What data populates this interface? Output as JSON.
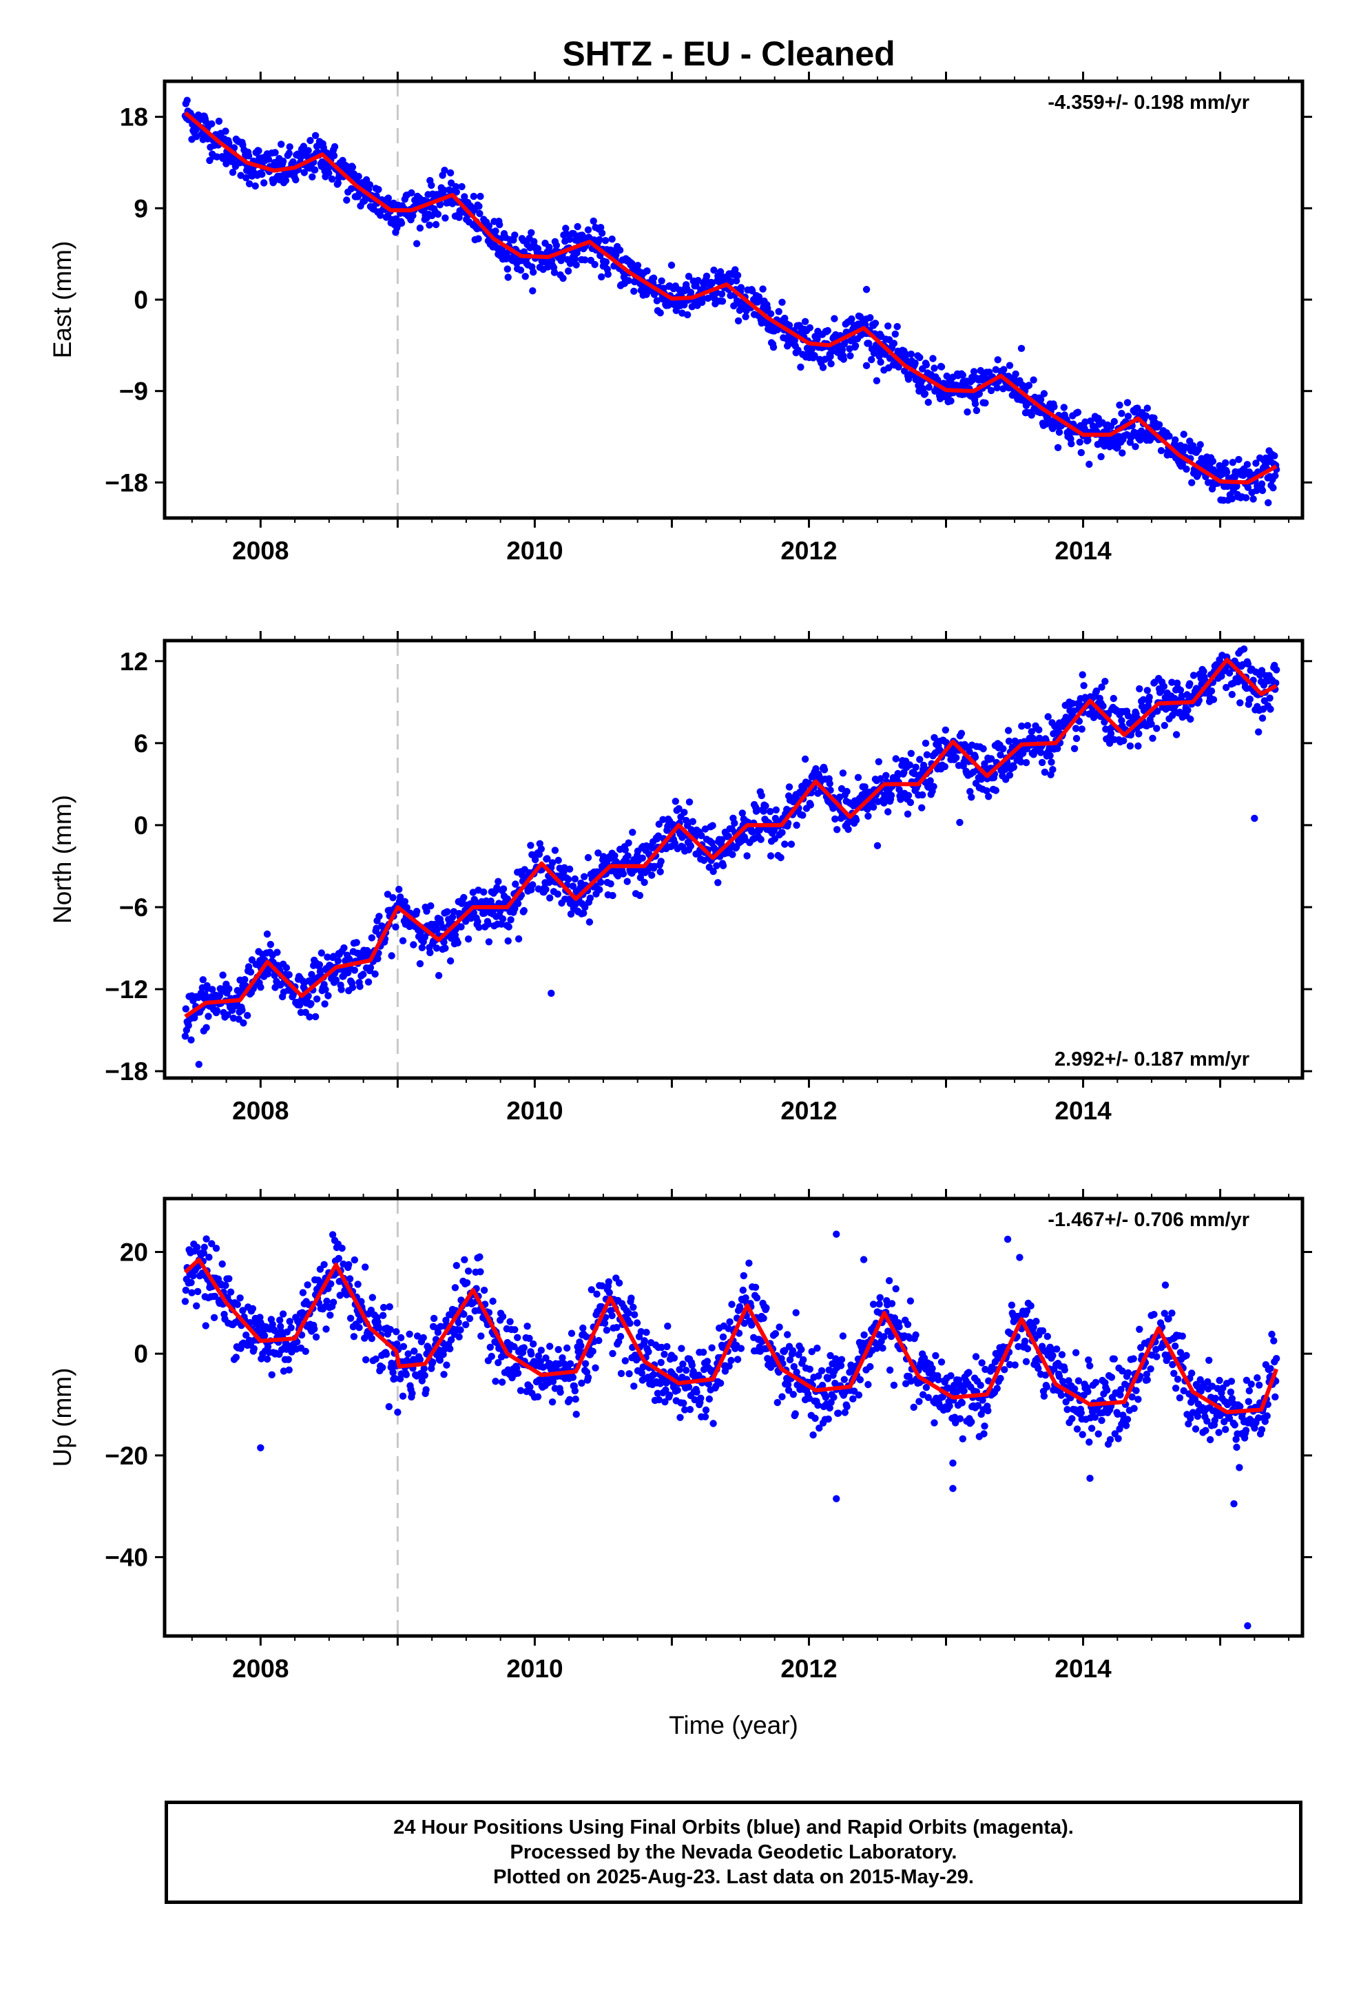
{
  "title": "SHTZ  - EU - Cleaned",
  "colors": {
    "points": "#0000ff",
    "model": "#ff0000",
    "break_line": "#c8c8c8",
    "axes": "#000000"
  },
  "xlabel": "Time (year)",
  "footer": {
    "line1": "24 Hour Positions Using Final Orbits (blue) and Rapid Orbits (magenta).",
    "line2": "Processed by the Nevada Geodetic Laboratory.",
    "line3": "Plotted on 2025-Aug-23. Last data on 2015-May-29."
  },
  "chart_data": [
    {
      "type": "scatter",
      "title": "SHTZ  - EU - Cleaned",
      "ylabel": "East (mm)",
      "xlabel": "",
      "xlim": [
        2007.3,
        2015.6
      ],
      "ylim": [
        -21.5,
        21.5
      ],
      "xticks": [
        2008,
        2010,
        2012,
        2014
      ],
      "xtick_labels": [
        "2008",
        "2010",
        "2012",
        "2014"
      ],
      "yticks": [
        18,
        9,
        0,
        -9,
        -18
      ],
      "ytick_labels": [
        "18",
        "9",
        "0",
        "−9",
        "−18"
      ],
      "rate_label": "-4.359+/- 0.198 mm/yr",
      "rate_position": "top-right",
      "break_line_x": 2009.0,
      "data_span": [
        2007.45,
        2015.41
      ],
      "trend": {
        "rate": -4.359,
        "value_at_start": 18.4,
        "seasonal_amplitude": 2.6,
        "noise": 1.0
      },
      "model_curve": {
        "x": [
          2007.45,
          2007.7,
          2007.9,
          2008.1,
          2008.25,
          2008.45,
          2008.7,
          2008.95,
          2009.1,
          2009.4,
          2009.7,
          2009.9,
          2010.1,
          2010.4,
          2010.7,
          2011.0,
          2011.15,
          2011.4,
          2011.7,
          2012.0,
          2012.15,
          2012.4,
          2012.7,
          2013.0,
          2013.2,
          2013.4,
          2013.7,
          2014.0,
          2014.2,
          2014.4,
          2014.7,
          2015.0,
          2015.2,
          2015.41
        ],
        "y": [
          18.4,
          15.5,
          13.5,
          12.7,
          13.0,
          14.3,
          11.2,
          8.8,
          8.8,
          10.3,
          6.0,
          4.3,
          4.2,
          5.7,
          2.6,
          0.1,
          0.2,
          1.5,
          -1.8,
          -4.3,
          -4.5,
          -2.8,
          -6.5,
          -8.9,
          -9.0,
          -7.5,
          -10.7,
          -13.3,
          -13.3,
          -11.7,
          -15.3,
          -17.9,
          -18.0,
          -16.4
        ]
      },
      "outliers": [
        {
          "x": 2009.75,
          "y": 6.0
        },
        {
          "x": 2010.5,
          "y": 3.3
        },
        {
          "x": 2012.42,
          "y": 1.0
        },
        {
          "x": 2012.42,
          "y": -6.5
        },
        {
          "x": 2013.55,
          "y": -4.8
        },
        {
          "x": 2015.35,
          "y": -20.0
        }
      ]
    },
    {
      "type": "scatter",
      "ylabel": "North (mm)",
      "xlabel": "",
      "xlim": [
        2007.3,
        2015.6
      ],
      "ylim": [
        -18.5,
        13.5
      ],
      "xticks": [
        2008,
        2010,
        2012,
        2014
      ],
      "xtick_labels": [
        "2008",
        "2010",
        "2012",
        "2014"
      ],
      "yticks": [
        12,
        6,
        0,
        -6,
        -12,
        -18
      ],
      "ytick_labels": [
        "12",
        "6",
        "0",
        "−6",
        "−12",
        "−18"
      ],
      "rate_label": "2.992+/- 0.187 mm/yr",
      "rate_position": "bottom-right",
      "break_line_x": 2009.0,
      "data_span": [
        2007.45,
        2015.41
      ],
      "trend": {
        "rate": 2.992,
        "value_at_start": -14.0,
        "seasonal_amplitude": 1.5,
        "noise": 0.9
      },
      "model_curve": {
        "x": [
          2007.45,
          2007.6,
          2007.85,
          2008.05,
          2008.3,
          2008.55,
          2008.8,
          2009.0,
          2009.3,
          2009.55,
          2009.8,
          2010.05,
          2010.3,
          2010.55,
          2010.8,
          2011.05,
          2011.3,
          2011.55,
          2011.8,
          2012.05,
          2012.3,
          2012.55,
          2012.8,
          2013.05,
          2013.3,
          2013.55,
          2013.8,
          2014.05,
          2014.3,
          2014.55,
          2014.8,
          2015.05,
          2015.3,
          2015.41
        ],
        "y": [
          -14.0,
          -13.0,
          -12.8,
          -10.0,
          -12.5,
          -10.4,
          -9.9,
          -6.0,
          -8.4,
          -6.0,
          -6.0,
          -2.8,
          -5.4,
          -3.0,
          -3.0,
          0.0,
          -2.4,
          0.0,
          0.0,
          3.2,
          0.6,
          3.0,
          3.0,
          6.1,
          3.6,
          5.9,
          6.0,
          9.1,
          6.6,
          8.9,
          9.0,
          12.1,
          9.6,
          10.2
        ]
      },
      "outliers": [
        {
          "x": 2007.55,
          "y": -17.5
        },
        {
          "x": 2009.3,
          "y": -11.0
        },
        {
          "x": 2010.12,
          "y": -12.3
        },
        {
          "x": 2012.5,
          "y": -1.5
        },
        {
          "x": 2013.1,
          "y": 0.2
        },
        {
          "x": 2015.25,
          "y": 0.5
        }
      ]
    },
    {
      "type": "scatter",
      "ylabel": "Up (mm)",
      "xlabel": "Time (year)",
      "xlim": [
        2007.3,
        2015.6
      ],
      "ylim": [
        -55.5,
        30.5
      ],
      "xticks": [
        2008,
        2010,
        2012,
        2014
      ],
      "xtick_labels": [
        "2008",
        "2010",
        "2012",
        "2014"
      ],
      "yticks": [
        20,
        0,
        -20,
        -40
      ],
      "ytick_labels": [
        "20",
        "0",
        "−20",
        "−40"
      ],
      "rate_label": "-1.467+/- 0.706 mm/yr",
      "rate_position": "top-right",
      "break_line_x": 2009.0,
      "data_span": [
        2007.45,
        2015.41
      ],
      "trend": {
        "rate": -1.467,
        "value_at_start": 16.0,
        "seasonal_amplitude": 10.0,
        "noise": 3.6
      },
      "model_curve": {
        "x": [
          2007.45,
          2007.55,
          2007.75,
          2008.0,
          2008.25,
          2008.55,
          2008.8,
          2008.99,
          2009.01,
          2009.2,
          2009.55,
          2009.8,
          2010.05,
          2010.3,
          2010.55,
          2010.8,
          2011.05,
          2011.3,
          2011.55,
          2011.8,
          2012.05,
          2012.3,
          2012.55,
          2012.8,
          2013.05,
          2013.3,
          2013.55,
          2013.8,
          2014.05,
          2014.3,
          2014.55,
          2014.8,
          2015.05,
          2015.3,
          2015.41
        ],
        "y": [
          16.0,
          18.5,
          10.0,
          2.5,
          3.0,
          17.5,
          5.0,
          0.5,
          -2.5,
          -2.0,
          12.5,
          0.0,
          -4.2,
          -3.5,
          11.0,
          -1.5,
          -5.8,
          -5.0,
          9.5,
          -3.0,
          -7.2,
          -6.5,
          8.0,
          -4.5,
          -8.6,
          -8.0,
          6.8,
          -6.0,
          -10.0,
          -9.5,
          5.0,
          -7.5,
          -11.5,
          -11.0,
          -3.0
        ]
      },
      "outliers": [
        {
          "x": 2007.6,
          "y": 5.5
        },
        {
          "x": 2008.0,
          "y": -18.5
        },
        {
          "x": 2009.0,
          "y": -11.5
        },
        {
          "x": 2011.2,
          "y": -10.0
        },
        {
          "x": 2012.2,
          "y": -28.5
        },
        {
          "x": 2012.2,
          "y": 23.5
        },
        {
          "x": 2012.4,
          "y": 18.5
        },
        {
          "x": 2013.05,
          "y": -26.5
        },
        {
          "x": 2013.05,
          "y": -21.5
        },
        {
          "x": 2013.45,
          "y": 22.5
        },
        {
          "x": 2014.05,
          "y": -24.5
        },
        {
          "x": 2014.6,
          "y": 13.5
        },
        {
          "x": 2015.1,
          "y": -29.5
        },
        {
          "x": 2015.2,
          "y": -53.5
        }
      ]
    }
  ]
}
